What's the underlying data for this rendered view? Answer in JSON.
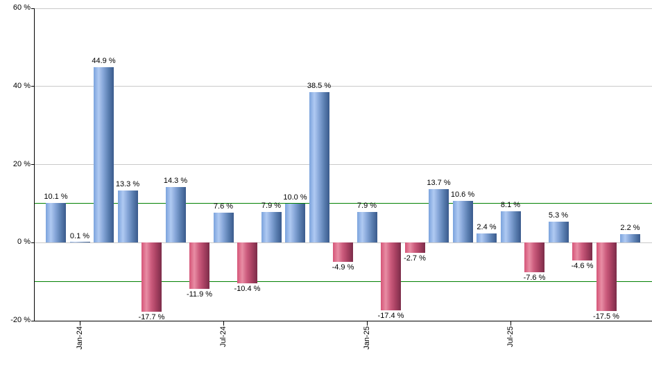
{
  "chart_data": {
    "type": "bar",
    "title": "",
    "xlabel": "",
    "ylabel": "",
    "ylim": [
      -20,
      60
    ],
    "grid": "horizontal",
    "legend": "none",
    "values": [
      10.1,
      0.1,
      44.9,
      13.3,
      -17.7,
      14.3,
      -11.9,
      7.6,
      -10.4,
      7.9,
      10.0,
      38.5,
      -4.9,
      7.9,
      -17.4,
      -2.7,
      13.7,
      10.6,
      2.4,
      8.1,
      -7.6,
      5.3,
      -4.6,
      -17.5,
      2.2
    ],
    "bar_labels": [
      "10.1 %",
      "0.1 %",
      "44.9 %",
      "13.3 %",
      "-17.7 %",
      "14.3 %",
      "-11.9 %",
      "7.6 %",
      "-10.4 %",
      "7.9 %",
      "10.0 %",
      "38.5 %",
      "-4.9 %",
      "7.9 %",
      "-17.4 %",
      "-2.7 %",
      "13.7 %",
      "10.6 %",
      "2.4 %",
      "8.1 %",
      "-7.6 %",
      "5.3 %",
      "-4.6 %",
      "-17.5 %",
      "2.2 %"
    ],
    "x_ticks": [
      {
        "label": "Jan-24",
        "bar_index": 1
      },
      {
        "label": "Jul-24",
        "bar_index": 7
      },
      {
        "label": "Jan-25",
        "bar_index": 13
      },
      {
        "label": "Jul-25",
        "bar_index": 19
      }
    ],
    "y_ticks": [
      {
        "label": "60 %",
        "value": 60
      },
      {
        "label": "40 %",
        "value": 40
      },
      {
        "label": "20 %",
        "value": 20
      },
      {
        "label": "0 %",
        "value": 0
      },
      {
        "label": "-20 %",
        "value": -20
      }
    ],
    "threshold_lines": [
      10,
      -10
    ],
    "colors": {
      "positive_bar": "#86a6d8",
      "negative_bar": "#cc5c7d",
      "threshold_line": "#008000",
      "gridline": "#c9c9c9",
      "axis": "#000000",
      "label_text": "#000000"
    }
  }
}
